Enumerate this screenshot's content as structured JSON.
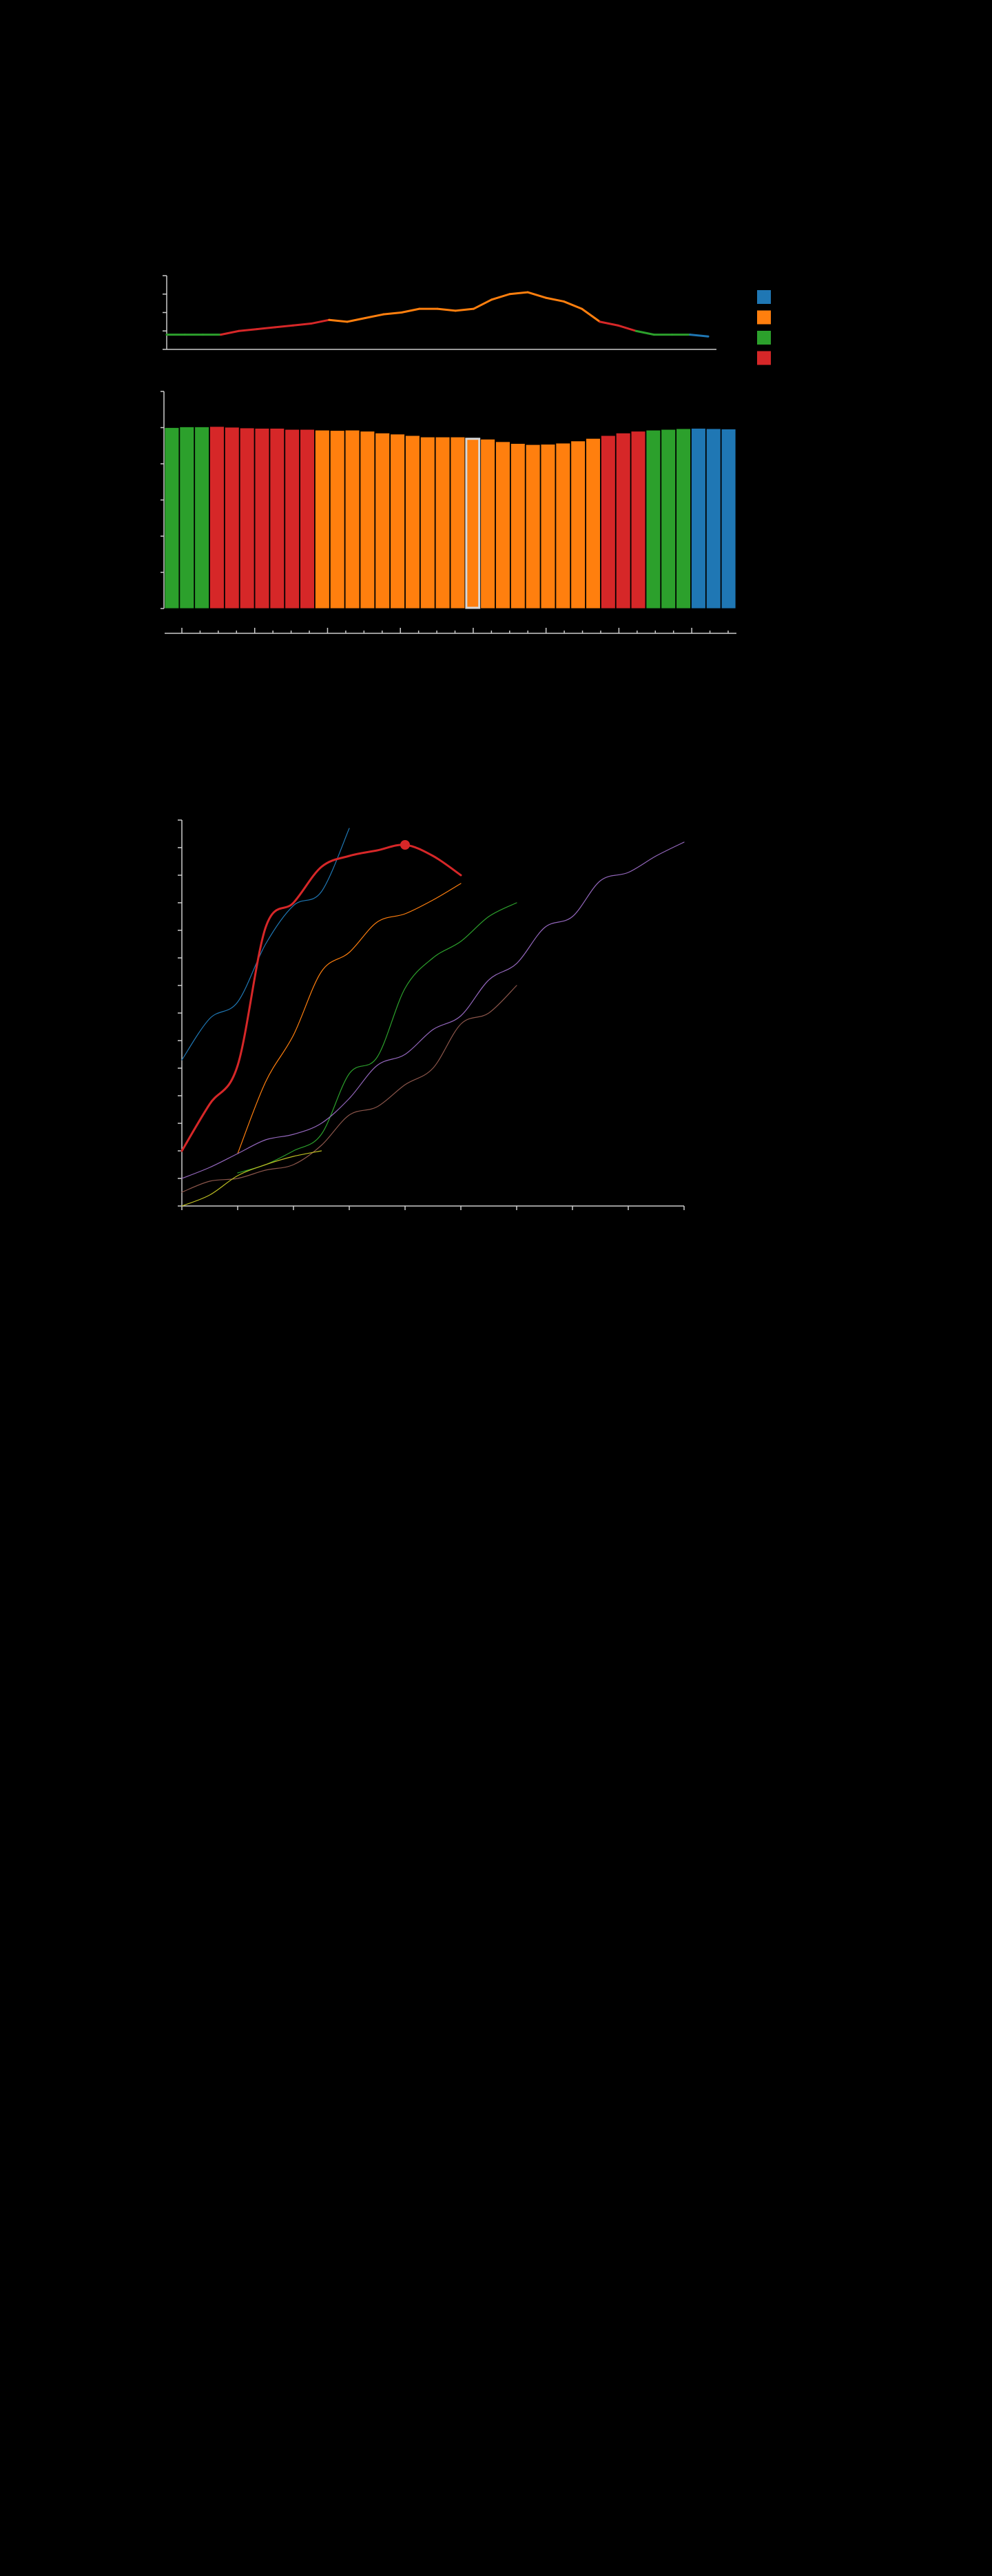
{
  "colors": {
    "background": "#000000",
    "axis": "#cccccc",
    "blue": "#1f77b4",
    "orange": "#ff7f0e",
    "green": "#2ca02c",
    "red": "#d62728",
    "purple": "#9467bd",
    "brown": "#8c564b",
    "olive": "#bcbd22",
    "highlight": "#d8d8d8"
  },
  "legend": {
    "items": [
      {
        "color": "#1f77b4"
      },
      {
        "color": "#ff7f0e"
      },
      {
        "color": "#2ca02c"
      },
      {
        "color": "#d62728"
      }
    ]
  },
  "chart_data": [
    {
      "type": "line",
      "ylim": [
        0,
        4
      ],
      "grid": false,
      "x": [
        0,
        1,
        2,
        3,
        4,
        5,
        6,
        7,
        8,
        9,
        10,
        11,
        12,
        13,
        14,
        15,
        16,
        17,
        18,
        19,
        20,
        21,
        22,
        23,
        24,
        25,
        26,
        27,
        28,
        29,
        30
      ],
      "values": [
        0.8,
        0.8,
        0.8,
        0.8,
        1.0,
        1.1,
        1.2,
        1.3,
        1.4,
        1.6,
        1.5,
        1.7,
        1.9,
        2.0,
        2.2,
        2.2,
        2.1,
        2.2,
        2.7,
        3.0,
        3.1,
        2.8,
        2.6,
        2.2,
        1.5,
        1.3,
        1.0,
        0.8,
        0.8,
        0.8,
        0.7
      ],
      "segment_colors": [
        "#2ca02c",
        "#2ca02c",
        "#2ca02c",
        "#d62728",
        "#d62728",
        "#d62728",
        "#d62728",
        "#d62728",
        "#d62728",
        "#ff7f0e",
        "#ff7f0e",
        "#ff7f0e",
        "#ff7f0e",
        "#ff7f0e",
        "#ff7f0e",
        "#ff7f0e",
        "#ff7f0e",
        "#ff7f0e",
        "#ff7f0e",
        "#ff7f0e",
        "#ff7f0e",
        "#ff7f0e",
        "#ff7f0e",
        "#ff7f0e",
        "#d62728",
        "#d62728",
        "#2ca02c",
        "#2ca02c",
        "#2ca02c",
        "#1f77b4"
      ]
    },
    {
      "type": "bar",
      "ylim": [
        0,
        6
      ],
      "grid": false,
      "values": [
        5.0,
        5.02,
        5.02,
        5.03,
        5.01,
        4.99,
        4.98,
        4.98,
        4.95,
        4.95,
        4.93,
        4.92,
        4.93,
        4.9,
        4.85,
        4.82,
        4.78,
        4.74,
        4.74,
        4.74,
        4.71,
        4.68,
        4.61,
        4.56,
        4.53,
        4.54,
        4.57,
        4.63,
        4.7,
        4.78,
        4.85,
        4.9,
        4.93,
        4.95,
        4.97,
        4.98,
        4.97,
        4.96
      ],
      "colors": [
        "#2ca02c",
        "#2ca02c",
        "#2ca02c",
        "#d62728",
        "#d62728",
        "#d62728",
        "#d62728",
        "#d62728",
        "#d62728",
        "#d62728",
        "#ff7f0e",
        "#ff7f0e",
        "#ff7f0e",
        "#ff7f0e",
        "#ff7f0e",
        "#ff7f0e",
        "#ff7f0e",
        "#ff7f0e",
        "#ff7f0e",
        "#ff7f0e",
        "#ff7f0e",
        "#ff7f0e",
        "#ff7f0e",
        "#ff7f0e",
        "#ff7f0e",
        "#ff7f0e",
        "#ff7f0e",
        "#ff7f0e",
        "#ff7f0e",
        "#d62728",
        "#d62728",
        "#d62728",
        "#2ca02c",
        "#2ca02c",
        "#2ca02c",
        "#1f77b4",
        "#1f77b4",
        "#1f77b4"
      ],
      "highlight_index": 20
    },
    {
      "type": "line",
      "xlim": [
        0,
        18
      ],
      "ylim": [
        0,
        14
      ],
      "grid": false,
      "series": [
        {
          "color": "#1f77b4",
          "width": 1.2,
          "x": [
            0,
            1,
            2,
            3,
            4,
            5,
            6
          ],
          "y": [
            5.3,
            6.8,
            7.4,
            9.5,
            10.9,
            11.4,
            13.7
          ]
        },
        {
          "color": "#d62728",
          "width": 3,
          "marker_x": 8,
          "x": [
            0,
            1,
            2,
            3,
            4,
            5,
            6,
            7,
            8,
            9,
            10
          ],
          "y": [
            2.0,
            3.7,
            5.1,
            10.1,
            11.0,
            12.3,
            12.7,
            12.9,
            13.1,
            12.7,
            12.0
          ]
        },
        {
          "color": "#ff7f0e",
          "width": 1.2,
          "x": [
            2,
            3,
            4,
            5,
            6,
            7,
            8,
            9,
            10
          ],
          "y": [
            1.9,
            4.5,
            6.2,
            8.5,
            9.2,
            10.3,
            10.6,
            11.1,
            11.7
          ]
        },
        {
          "color": "#2ca02c",
          "width": 1.2,
          "x": [
            2,
            3,
            4,
            5,
            6,
            7,
            8,
            9,
            10,
            11,
            12
          ],
          "y": [
            1.2,
            1.5,
            2.0,
            2.6,
            4.8,
            5.4,
            7.9,
            9.0,
            9.6,
            10.5,
            11.0
          ]
        },
        {
          "color": "#9467bd",
          "width": 1.2,
          "x": [
            0,
            1,
            2,
            3,
            4,
            5,
            6,
            7,
            8,
            9,
            10,
            11,
            12,
            13,
            14,
            15,
            16,
            17,
            18
          ],
          "y": [
            1.0,
            1.4,
            1.9,
            2.4,
            2.6,
            3.0,
            3.9,
            5.1,
            5.5,
            6.4,
            6.9,
            8.2,
            8.8,
            10.1,
            10.5,
            11.8,
            12.1,
            12.7,
            13.2
          ]
        },
        {
          "color": "#8c564b",
          "width": 1.2,
          "x": [
            0,
            1,
            2,
            3,
            4,
            5,
            6,
            7,
            8,
            9,
            10,
            11,
            12
          ],
          "y": [
            0.5,
            0.9,
            1.0,
            1.3,
            1.5,
            2.2,
            3.3,
            3.6,
            4.4,
            5.0,
            6.6,
            7.0,
            8.0
          ]
        },
        {
          "color": "#bcbd22",
          "width": 1.2,
          "x": [
            0,
            1,
            2,
            3,
            4,
            5
          ],
          "y": [
            0.0,
            0.4,
            1.1,
            1.5,
            1.8,
            2.0
          ]
        }
      ]
    }
  ]
}
